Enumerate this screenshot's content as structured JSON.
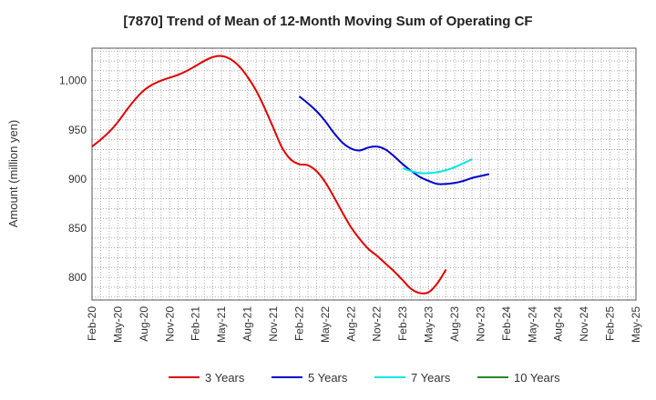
{
  "chart_data": {
    "type": "line",
    "title": "[7870]  Trend of Mean of 12-Month Moving Sum of Operating CF",
    "xlabel": "",
    "ylabel": "Amount (million yen)",
    "ylim": [
      777,
      1033
    ],
    "yticks": [
      800,
      850,
      900,
      950,
      1000
    ],
    "ytick_labels": [
      "800",
      "850",
      "900",
      "950",
      "1,000"
    ],
    "x_tick_labels": [
      "Feb-20",
      "May-20",
      "Aug-20",
      "Nov-20",
      "Feb-21",
      "May-21",
      "Aug-21",
      "Nov-21",
      "Feb-22",
      "May-22",
      "Aug-22",
      "Nov-22",
      "Feb-23",
      "May-23",
      "Aug-23",
      "Nov-23",
      "Feb-24",
      "May-24",
      "Aug-24",
      "Nov-24",
      "Feb-25",
      "May-25"
    ],
    "grid": true,
    "legend_position": "bottom",
    "series": [
      {
        "name": "3 Years",
        "color": "#e00000",
        "start_index": 0,
        "values": [
          933,
          940,
          948,
          958,
          970,
          981,
          990,
          996,
          1000,
          1003,
          1006,
          1010,
          1015,
          1020,
          1024,
          1025,
          1022,
          1015,
          1004,
          990,
          972,
          952,
          932,
          920,
          915,
          914,
          908,
          897,
          882,
          866,
          851,
          839,
          829,
          822,
          814,
          806,
          797,
          788,
          784,
          785,
          794,
          808
        ]
      },
      {
        "name": "5 Years",
        "color": "#0000cc",
        "start_index": 24,
        "values": [
          984,
          977,
          969,
          959,
          947,
          937,
          931,
          929,
          932,
          933,
          930,
          923,
          915,
          908,
          902,
          898,
          895,
          895,
          896,
          898,
          901,
          903,
          905
        ]
      },
      {
        "name": "7 Years",
        "color": "#00e5e5",
        "start_index": 36,
        "values": [
          911,
          908,
          906,
          906,
          907,
          909,
          912,
          916,
          920
        ]
      },
      {
        "name": "10 Years",
        "color": "#228b22",
        "start_index": 0,
        "values": []
      }
    ]
  }
}
